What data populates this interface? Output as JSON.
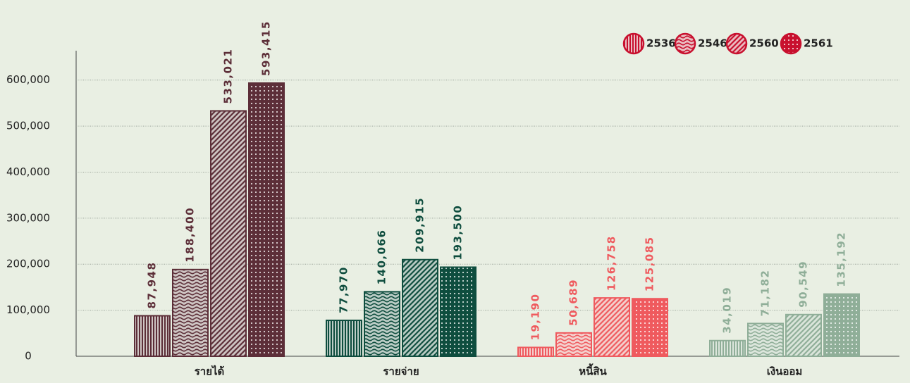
{
  "chart_data": {
    "type": "bar",
    "categories": [
      "รายได้",
      "รายจ่าย",
      "หนี้สิน",
      "เงินออม"
    ],
    "category_colors": [
      "#5c2e38",
      "#0e4d3e",
      "#ef5a5e",
      "#8fae98"
    ],
    "series": [
      {
        "name": "2536",
        "pattern": "vertical",
        "values": [
          87948,
          77970,
          19190,
          34019
        ],
        "value_labels": [
          "87,948",
          "77,970",
          "19,190",
          "34,019"
        ]
      },
      {
        "name": "2546",
        "pattern": "wave",
        "values": [
          188400,
          140066,
          50689,
          71182
        ],
        "value_labels": [
          "188,400",
          "140,066",
          "50,689",
          "71,182"
        ]
      },
      {
        "name": "2560",
        "pattern": "diagonal",
        "values": [
          533021,
          209915,
          126758,
          90549
        ],
        "value_labels": [
          "533,021",
          "209,915",
          "126,758",
          "90,549"
        ]
      },
      {
        "name": "2561",
        "pattern": "dots",
        "values": [
          593415,
          193500,
          125085,
          135192
        ],
        "value_labels": [
          "593,415",
          "193,500",
          "125,085",
          "135,192"
        ]
      }
    ],
    "legend_color": "#c8102e",
    "legend_position": "top-right",
    "ylim": [
      0,
      650000
    ],
    "yticks": [
      0,
      {
        "value": 100000,
        "label": "100,000"
      },
      {
        "value": 200000,
        "label": "200,000"
      },
      {
        "value": 300000,
        "label": "300,000"
      },
      {
        "value": 400000,
        "label": "400,000"
      },
      {
        "value": 500000,
        "label": "500,000"
      },
      {
        "value": 600000,
        "label": "600,000"
      }
    ],
    "grid": true
  }
}
